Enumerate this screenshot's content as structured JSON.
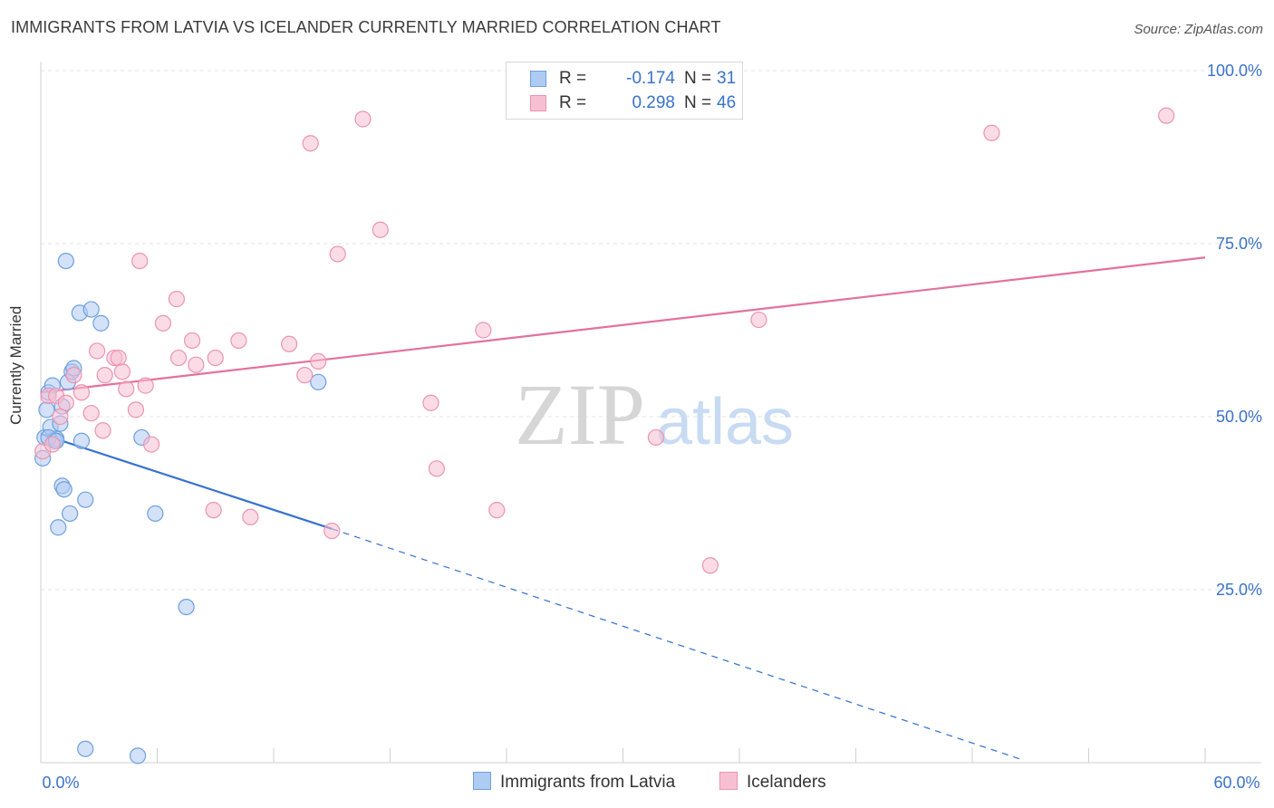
{
  "title": "IMMIGRANTS FROM LATVIA VS ICELANDER CURRENTLY MARRIED CORRELATION CHART",
  "source": "Source: ZipAtlas.com",
  "legend": {
    "r_label": "R =",
    "n_label": "N =",
    "series": [
      {
        "name": "Immigrants from Latvia",
        "r": "-0.174",
        "n": "31"
      },
      {
        "name": "Icelanders",
        "r": "0.298",
        "n": "46"
      }
    ]
  },
  "colors": {
    "blue_fill": "#aecbf2",
    "blue_stroke": "#6f9fe0",
    "blue_line": "#3572d0",
    "pink_fill": "#f7c0d2",
    "pink_stroke": "#eb93b2",
    "pink_line": "#e2729c",
    "tick_text": "#3a72c8"
  },
  "watermark": {
    "zip": "ZIP",
    "atlas": "atlas"
  },
  "chart_data": {
    "type": "scatter",
    "title": "IMMIGRANTS FROM LATVIA VS ICELANDER CURRENTLY MARRIED CORRELATION CHART",
    "xlabel": "",
    "ylabel": "Currently Married",
    "xlim": [
      0,
      60
    ],
    "ylim": [
      0,
      100
    ],
    "x_ticks": [
      0,
      60
    ],
    "x_tick_labels": [
      "0.0%",
      "60.0%"
    ],
    "y_ticks": [
      25,
      50,
      75,
      100
    ],
    "y_tick_labels": [
      "25.0%",
      "50.0%",
      "75.0%",
      "100.0%"
    ],
    "grid": true,
    "legend_position": "top-center",
    "series": [
      {
        "name": "Immigrants from Latvia",
        "color": "#6f9fe0",
        "points": [
          [
            0.1,
            44.0
          ],
          [
            0.2,
            47.0
          ],
          [
            0.3,
            51.0
          ],
          [
            0.4,
            53.5
          ],
          [
            0.5,
            48.5
          ],
          [
            0.6,
            54.5
          ],
          [
            0.7,
            46.5
          ],
          [
            0.8,
            46.8
          ],
          [
            1.0,
            49.0
          ],
          [
            0.9,
            34.0
          ],
          [
            1.1,
            40.0
          ],
          [
            1.2,
            39.5
          ],
          [
            1.1,
            51.5
          ],
          [
            1.3,
            72.5
          ],
          [
            1.5,
            36.0
          ],
          [
            1.4,
            55.0
          ],
          [
            1.6,
            56.5
          ],
          [
            1.7,
            57.0
          ],
          [
            2.0,
            65.0
          ],
          [
            2.1,
            46.5
          ],
          [
            2.3,
            38.0
          ],
          [
            2.6,
            65.5
          ],
          [
            3.1,
            63.5
          ],
          [
            5.2,
            47.0
          ],
          [
            5.9,
            36.0
          ],
          [
            7.5,
            22.5
          ],
          [
            14.3,
            55.0
          ],
          [
            2.3,
            2.0
          ],
          [
            5.0,
            1.0
          ],
          [
            0.4,
            47.0
          ],
          [
            0.8,
            46.5
          ]
        ]
      },
      {
        "name": "Icelanders",
        "color": "#eb93b2",
        "points": [
          [
            0.1,
            45.0
          ],
          [
            0.4,
            53.0
          ],
          [
            0.8,
            53.0
          ],
          [
            1.0,
            50.0
          ],
          [
            1.3,
            52.0
          ],
          [
            1.7,
            56.0
          ],
          [
            2.1,
            53.5
          ],
          [
            2.6,
            50.5
          ],
          [
            2.9,
            59.5
          ],
          [
            3.2,
            48.0
          ],
          [
            3.3,
            56.0
          ],
          [
            3.8,
            58.5
          ],
          [
            4.0,
            58.5
          ],
          [
            4.2,
            56.5
          ],
          [
            4.4,
            54.0
          ],
          [
            4.9,
            51.0
          ],
          [
            5.1,
            72.5
          ],
          [
            5.4,
            54.5
          ],
          [
            5.7,
            46.0
          ],
          [
            6.3,
            63.5
          ],
          [
            7.0,
            67.0
          ],
          [
            7.1,
            58.5
          ],
          [
            7.8,
            61.0
          ],
          [
            8.0,
            57.5
          ],
          [
            9.0,
            58.5
          ],
          [
            8.9,
            36.5
          ],
          [
            10.2,
            61.0
          ],
          [
            10.8,
            35.5
          ],
          [
            12.8,
            60.5
          ],
          [
            13.6,
            56.0
          ],
          [
            13.9,
            89.5
          ],
          [
            14.3,
            58.0
          ],
          [
            15.0,
            33.5
          ],
          [
            15.3,
            73.5
          ],
          [
            16.6,
            93.0
          ],
          [
            17.5,
            77.0
          ],
          [
            20.1,
            52.0
          ],
          [
            20.4,
            42.5
          ],
          [
            22.8,
            62.5
          ],
          [
            23.5,
            36.5
          ],
          [
            31.7,
            47.0
          ],
          [
            34.5,
            28.5
          ],
          [
            37.0,
            64.0
          ],
          [
            49.0,
            91.0
          ],
          [
            58.0,
            93.5
          ],
          [
            0.6,
            46.0
          ]
        ]
      }
    ],
    "trendlines": [
      {
        "series": "Immigrants from Latvia",
        "x": [
          0,
          15
        ],
        "y": [
          47.5,
          33.8
        ],
        "style": "solid",
        "extended_to": [
          50.5,
          0.5
        ],
        "extended_style": "dashed"
      },
      {
        "series": "Icelanders",
        "x": [
          0,
          60
        ],
        "y": [
          53.5,
          73.0
        ],
        "style": "solid"
      }
    ]
  }
}
